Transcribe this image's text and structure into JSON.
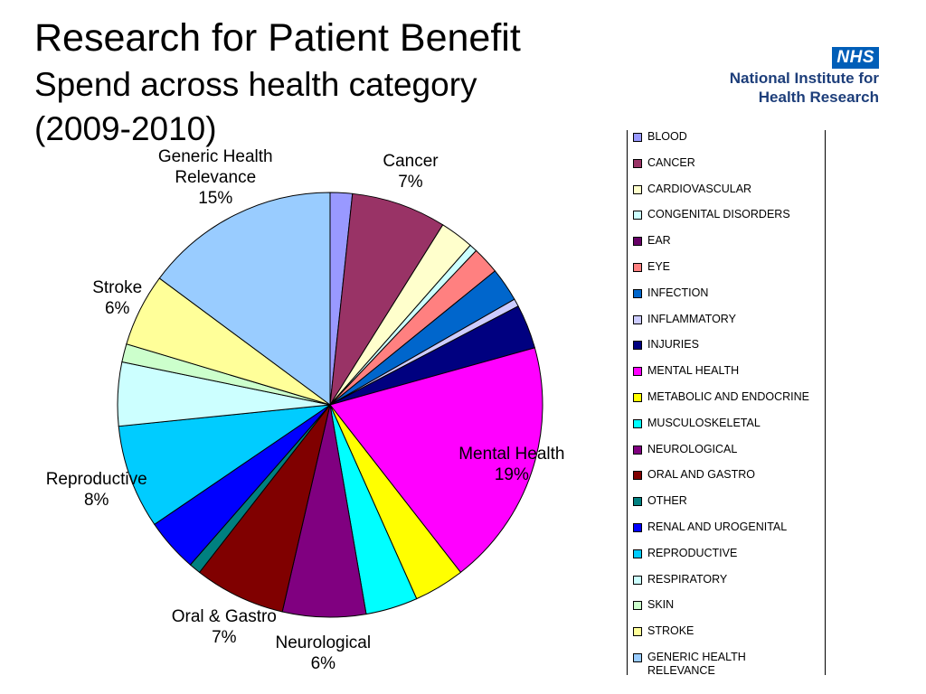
{
  "header": {
    "title": "Research for Patient Benefit",
    "subtitle": "Spend across health category",
    "period": "(2009-2010)"
  },
  "logo": {
    "badge": "NHS",
    "line1": "National Institute for",
    "line2": "Health Research"
  },
  "chart_data": {
    "type": "pie",
    "start_angle_deg": 0,
    "direction": "clockwise",
    "categories": [
      "BLOOD",
      "CANCER",
      "CARDIOVASCULAR",
      "CONGENITAL DISORDERS",
      "EAR",
      "EYE",
      "INFECTION",
      "INFLAMMATORY",
      "INJURIES",
      "MENTAL HEALTH",
      "METABOLIC AND ENDOCRINE",
      "MUSCULOSKELETAL",
      "NEUROLOGICAL",
      "ORAL AND GASTRO",
      "OTHER",
      "RENAL AND UROGENITAL",
      "REPRODUCTIVE",
      "RESPIRATORY",
      "SKIN",
      "STROKE",
      "GENERIC HEALTH RELEVANCE"
    ],
    "values": [
      1.7,
      7.3,
      2.6,
      0.6,
      0.0,
      2.1,
      2.6,
      0.6,
      3.4,
      19.0,
      3.9,
      4.0,
      6.4,
      7.0,
      0.9,
      4.1,
      8.0,
      4.9,
      1.4,
      5.6,
      15.0
    ],
    "colors": [
      "#9999ff",
      "#993366",
      "#ffffcc",
      "#ccffff",
      "#660066",
      "#ff8080",
      "#0066cc",
      "#ccccff",
      "#000080",
      "#ff00ff",
      "#ffff00",
      "#00ffff",
      "#800080",
      "#800000",
      "#008080",
      "#0000ff",
      "#00ccff",
      "#ccffff",
      "#ccffcc",
      "#ffff99",
      "#99ccff"
    ],
    "labels": [
      {
        "category": "CANCER",
        "text": "Cancer\n7%"
      },
      {
        "category": "MENTAL HEALTH",
        "text": "Mental Health\n19%"
      },
      {
        "category": "NEUROLOGICAL",
        "text": "Neurological\n6%"
      },
      {
        "category": "ORAL AND GASTRO",
        "text": "Oral & Gastro\n7%"
      },
      {
        "category": "REPRODUCTIVE",
        "text": "Reproductive\n8%"
      },
      {
        "category": "STROKE",
        "text": "Stroke\n6%"
      },
      {
        "category": "GENERIC HEALTH RELEVANCE",
        "text": "Generic Health\nRelevance\n15%"
      }
    ],
    "legend": [
      "BLOOD",
      "CANCER",
      "CARDIOVASCULAR",
      "CONGENITAL DISORDERS",
      "EAR",
      "EYE",
      "INFECTION",
      "INFLAMMATORY",
      "INJURIES",
      "MENTAL HEALTH",
      "METABOLIC AND ENDOCRINE",
      "MUSCULOSKELETAL",
      "NEUROLOGICAL",
      "ORAL AND GASTRO",
      "OTHER",
      "RENAL AND UROGENITAL",
      "REPRODUCTIVE",
      "RESPIRATORY",
      "SKIN",
      "STROKE",
      "GENERIC HEALTH\nRELEVANCE"
    ],
    "legend_position": "right"
  }
}
